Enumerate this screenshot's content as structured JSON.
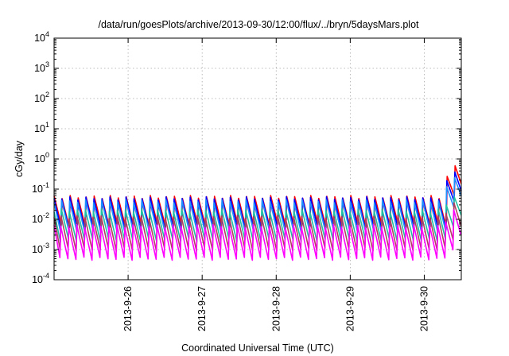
{
  "chart_data": {
    "type": "line",
    "title": "/data/run/goesPlots/archive/2013-09-30/12:00/flux/../bryn/5daysMars.plot",
    "xlabel": "Coordinated Universal Time (UTC)",
    "ylabel": "cGy/day",
    "y_scale": "log",
    "ylim": [
      "1e-4",
      "1e4"
    ],
    "y_ticks": [
      {
        "base": "10",
        "exp": "-4"
      },
      {
        "base": "10",
        "exp": "-3"
      },
      {
        "base": "10",
        "exp": "-2"
      },
      {
        "base": "10",
        "exp": "-1"
      },
      {
        "base": "10",
        "exp": "0"
      },
      {
        "base": "10",
        "exp": "1"
      },
      {
        "base": "10",
        "exp": "2"
      },
      {
        "base": "10",
        "exp": "3"
      },
      {
        "base": "10",
        "exp": "4"
      }
    ],
    "xlim": [
      "2013-09-25 00:00",
      "2013-09-30 12:00"
    ],
    "x_ticks": [
      "2013-9-26",
      "2013-9-27",
      "2013-9-28",
      "2013-9-29",
      "2013-9-30"
    ],
    "grid": true,
    "period_hours": 2.6,
    "series": [
      {
        "color": "#ff0000",
        "base_peak": 0.055,
        "base_trough": 0.006,
        "end_peak": 0.6,
        "end_trough": 0.15
      },
      {
        "color": "#0000ff",
        "base_peak": 0.05,
        "base_trough": 0.005,
        "end_peak": 0.42,
        "end_trough": 0.1
      },
      {
        "color": "#2090ff",
        "base_peak": 0.04,
        "base_trough": 0.004,
        "end_peak": 0.28,
        "end_trough": 0.07
      },
      {
        "color": "#20c0a0",
        "base_peak": 0.02,
        "base_trough": 0.002,
        "end_peak": 0.06,
        "end_trough": 0.015
      },
      {
        "color": "#b04060",
        "base_peak": 0.012,
        "base_trough": 0.001,
        "end_peak": 0.035,
        "end_trough": 0.006
      },
      {
        "color": "#ff00ff",
        "base_peak": 0.006,
        "base_trough": 0.0005,
        "end_peak": 0.02,
        "end_trough": 0.003
      }
    ],
    "flare_start": "2013-09-30 06:00"
  }
}
